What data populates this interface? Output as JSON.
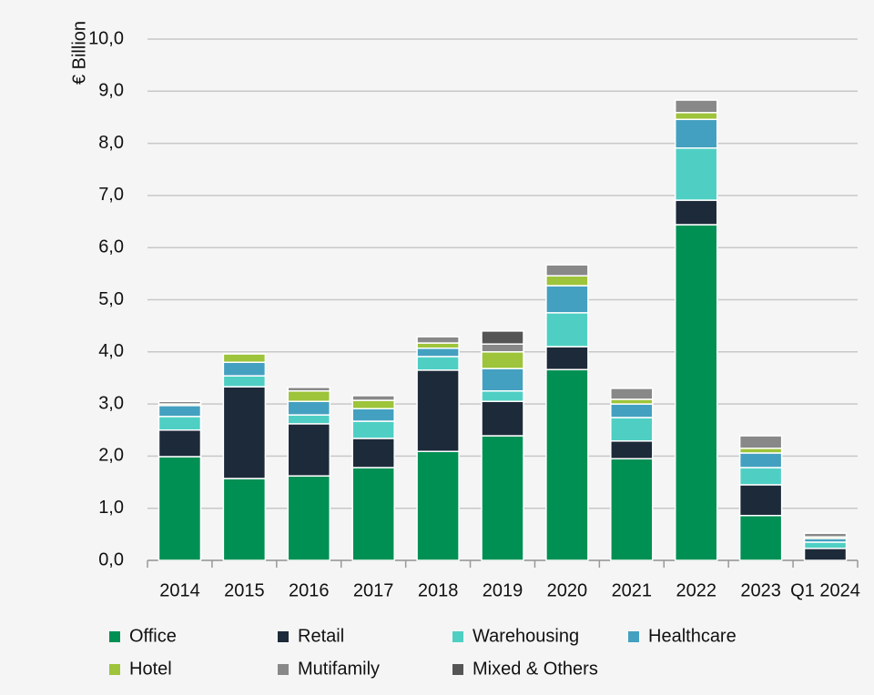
{
  "chart_data": {
    "type": "stacked_bar",
    "y_axis_label": "€ Billion",
    "categories": [
      "2014",
      "2015",
      "2016",
      "2017",
      "2018",
      "2019",
      "2020",
      "2021",
      "2022",
      "2023",
      "Q1 2024"
    ],
    "series": [
      {
        "name": "Office",
        "color": "#009054",
        "values": [
          1.99,
          1.57,
          1.62,
          1.78,
          2.09,
          2.39,
          3.66,
          1.95,
          6.44,
          0.86,
          0
        ]
      },
      {
        "name": "Retail",
        "color": "#1d2a3a",
        "values": [
          0.51,
          1.76,
          1.0,
          0.56,
          1.56,
          0.66,
          0.44,
          0.34,
          0.47,
          0.59,
          0.23
        ]
      },
      {
        "name": "Warehousing",
        "color": "#4fcfc4",
        "values": [
          0.26,
          0.21,
          0.17,
          0.33,
          0.26,
          0.2,
          0.65,
          0.45,
          1.0,
          0.33,
          0.12
        ]
      },
      {
        "name": "Healthcare",
        "color": "#44a0c0",
        "values": [
          0.21,
          0.26,
          0.26,
          0.24,
          0.16,
          0.43,
          0.52,
          0.26,
          0.55,
          0.28,
          0.07
        ]
      },
      {
        "name": "Hotel",
        "color": "#9dc43a",
        "values": [
          0.03,
          0.16,
          0.2,
          0.16,
          0.1,
          0.32,
          0.19,
          0.09,
          0.13,
          0.09,
          0.03
        ]
      },
      {
        "name": "Mutifamily",
        "color": "#888888",
        "values": [
          0.05,
          0,
          0.07,
          0.09,
          0.12,
          0.15,
          0.21,
          0.21,
          0.24,
          0.24,
          0.07
        ]
      },
      {
        "name": "Mixed & Others",
        "color": "#555555",
        "values": [
          0,
          0,
          0,
          0,
          0,
          0.25,
          0,
          0,
          0,
          0,
          0
        ]
      }
    ],
    "ylim": [
      0,
      10
    ],
    "yticks": [
      {
        "value": 0,
        "label": "0,0"
      },
      {
        "value": 1,
        "label": "1,0"
      },
      {
        "value": 2,
        "label": "2,0"
      },
      {
        "value": 3,
        "label": "3,0"
      },
      {
        "value": 4,
        "label": "4,0"
      },
      {
        "value": 5,
        "label": "5,0"
      },
      {
        "value": 6,
        "label": "6,0"
      },
      {
        "value": 7,
        "label": "7,0"
      },
      {
        "value": 8,
        "label": "8,0"
      },
      {
        "value": 9,
        "label": "9,0"
      },
      {
        "value": 10,
        "label": "10,0"
      }
    ],
    "grid": true
  }
}
